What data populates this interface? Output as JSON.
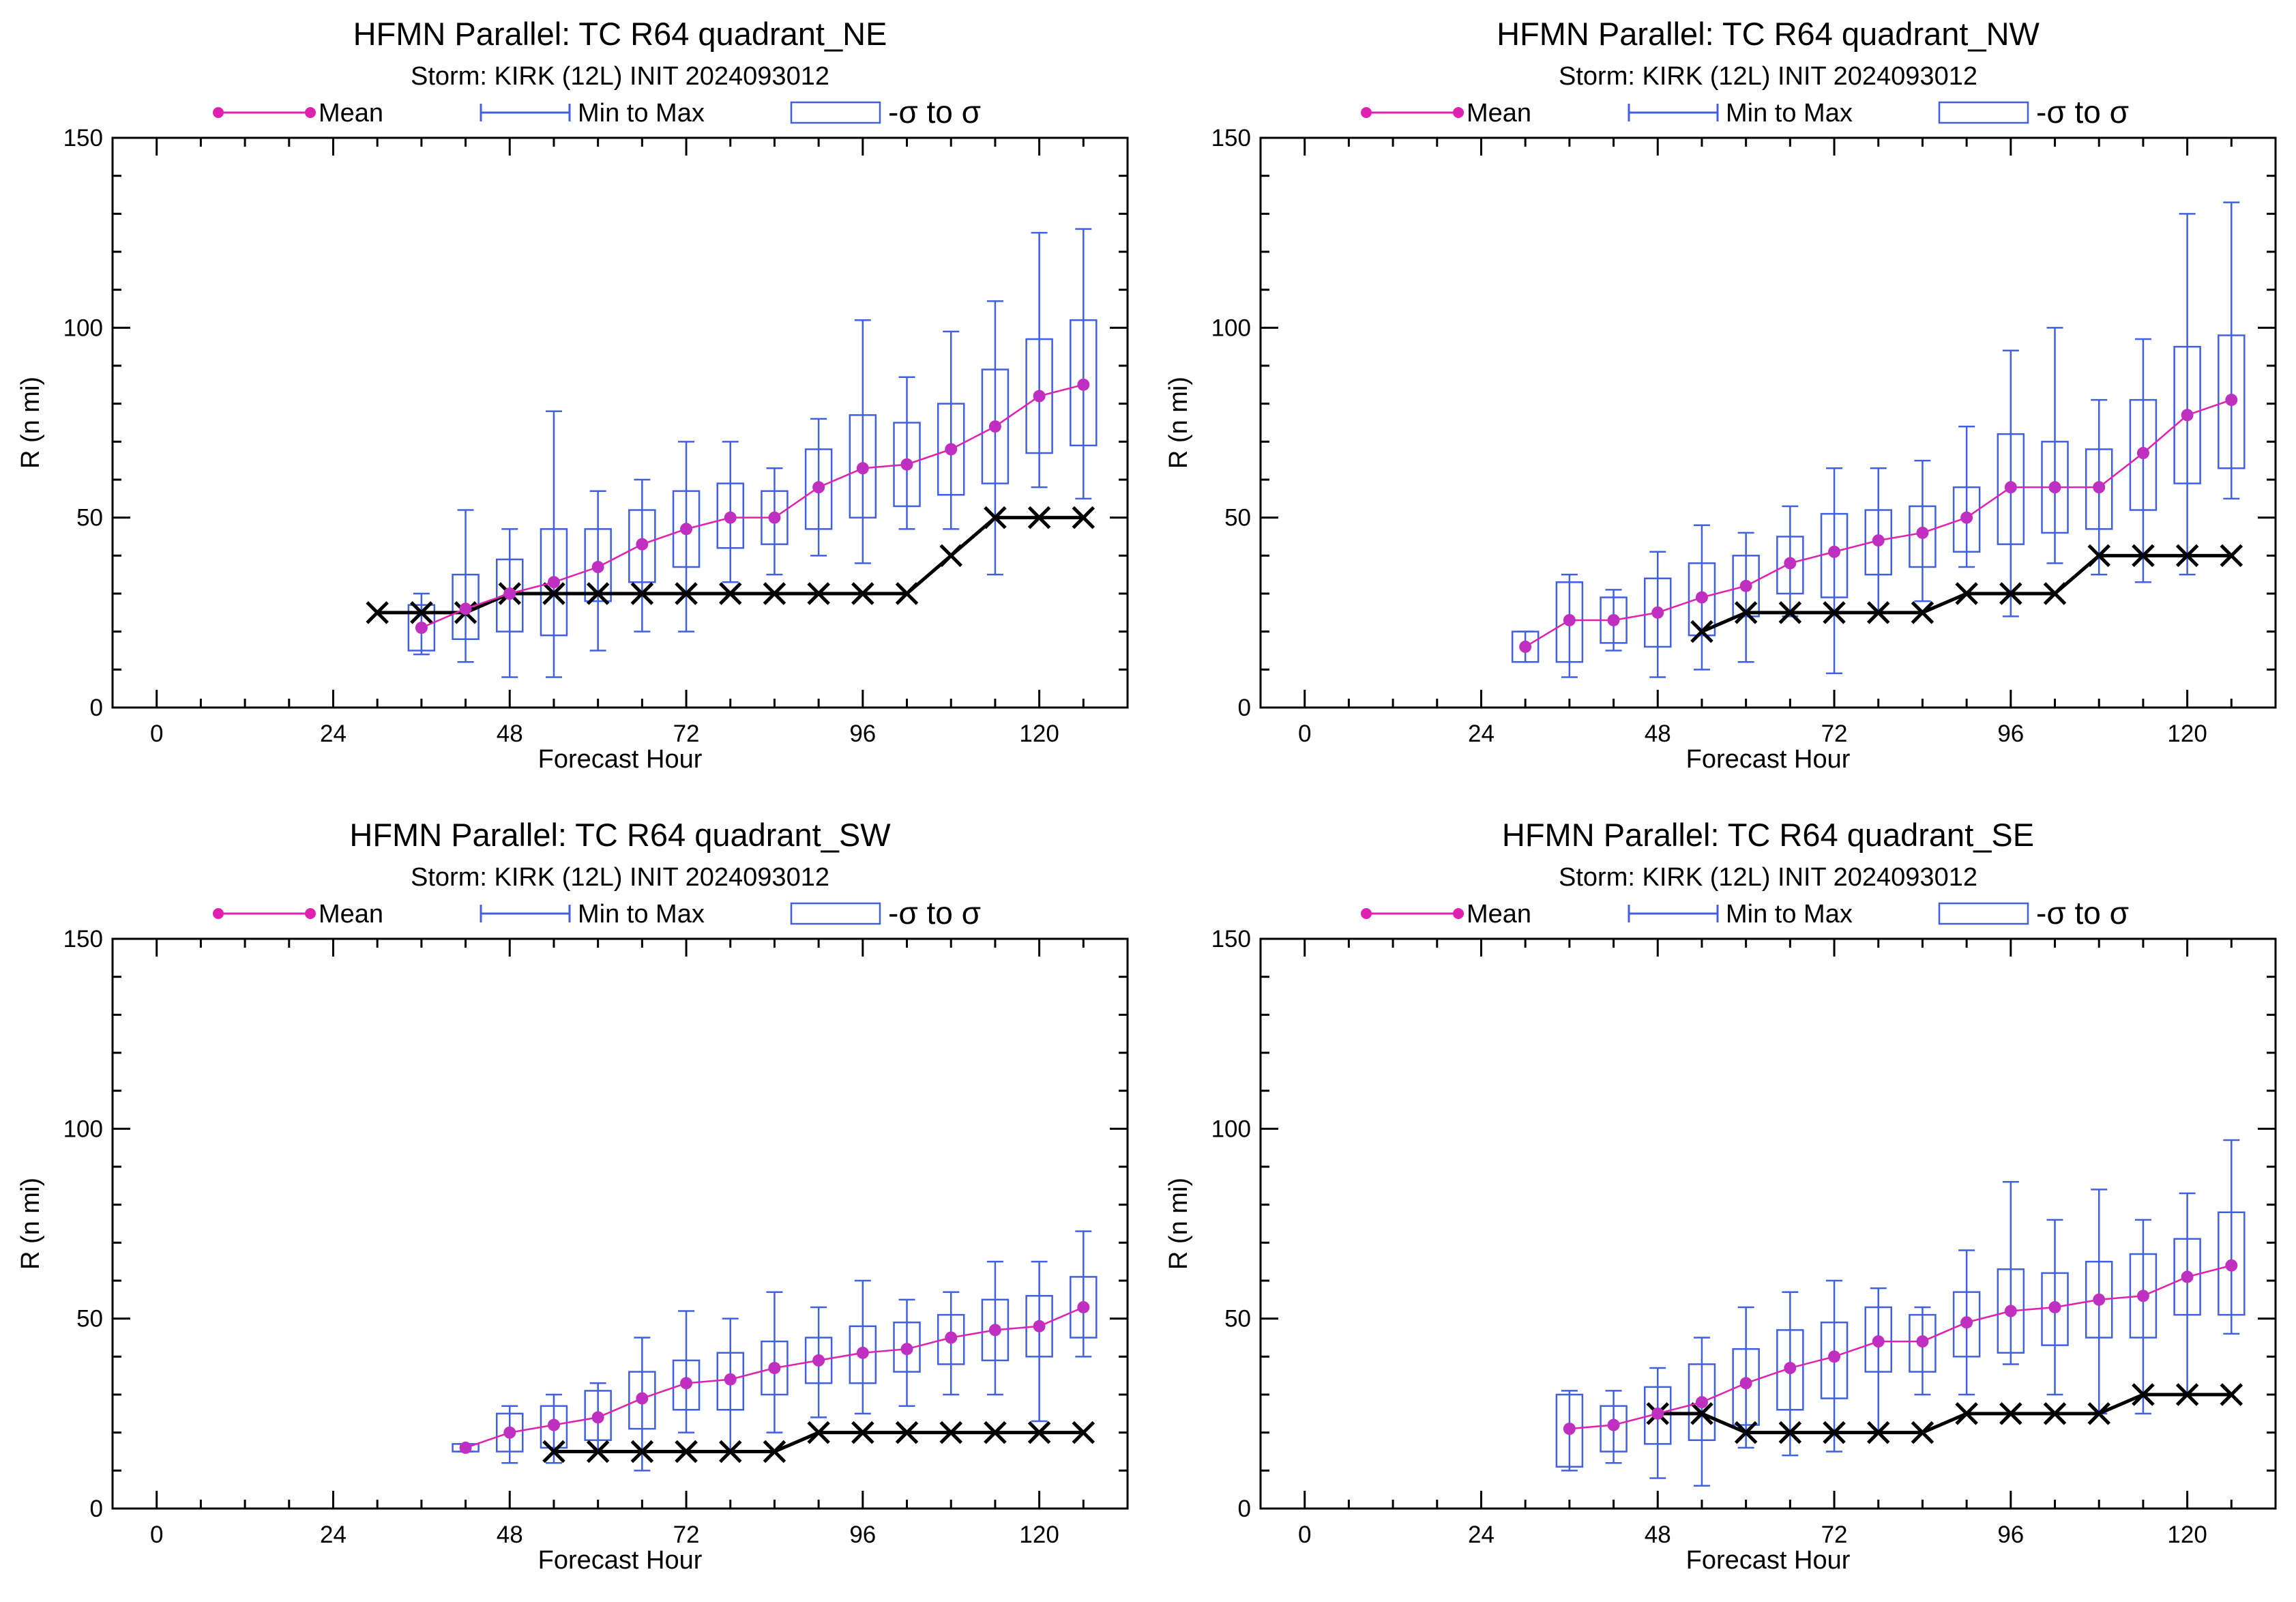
{
  "colors": {
    "mean": "#e020b0",
    "mean_marker": "#c030c0",
    "range": "#4060e0",
    "best_track": "#000000"
  },
  "legend": {
    "mean": "Mean",
    "range": "Min to Max",
    "sigma": "-σ to σ"
  },
  "chart_data": [
    {
      "type": "box",
      "title": "HFMN Parallel: TC  R64 quadrant_NE",
      "subtitle": "Storm: KIRK (12L) INIT 2024093012",
      "xlabel": "Forecast Hour",
      "ylabel": "R (n mi)",
      "xlim": [
        -6,
        132
      ],
      "ylim": [
        0,
        150
      ],
      "xticks": [
        0,
        24,
        48,
        72,
        96,
        120
      ],
      "yticks": [
        0,
        50,
        100,
        150
      ],
      "ensemble": [
        {
          "x": 36,
          "mean": 21,
          "min": 14,
          "max": 30,
          "lo": 15,
          "hi": 27
        },
        {
          "x": 42,
          "mean": 26,
          "min": 12,
          "max": 52,
          "lo": 18,
          "hi": 35
        },
        {
          "x": 48,
          "mean": 30,
          "min": 8,
          "max": 47,
          "lo": 20,
          "hi": 39
        },
        {
          "x": 54,
          "mean": 33,
          "min": 8,
          "max": 78,
          "lo": 19,
          "hi": 47
        },
        {
          "x": 60,
          "mean": 37,
          "min": 15,
          "max": 57,
          "lo": 28,
          "hi": 47
        },
        {
          "x": 66,
          "mean": 43,
          "min": 20,
          "max": 60,
          "lo": 33,
          "hi": 52
        },
        {
          "x": 72,
          "mean": 47,
          "min": 20,
          "max": 70,
          "lo": 37,
          "hi": 57
        },
        {
          "x": 78,
          "mean": 50,
          "min": 33,
          "max": 70,
          "lo": 42,
          "hi": 59
        },
        {
          "x": 84,
          "mean": 50,
          "min": 35,
          "max": 63,
          "lo": 43,
          "hi": 57
        },
        {
          "x": 90,
          "mean": 58,
          "min": 40,
          "max": 76,
          "lo": 47,
          "hi": 68
        },
        {
          "x": 96,
          "mean": 63,
          "min": 38,
          "max": 102,
          "lo": 50,
          "hi": 77
        },
        {
          "x": 102,
          "mean": 64,
          "min": 47,
          "max": 87,
          "lo": 53,
          "hi": 75
        },
        {
          "x": 108,
          "mean": 68,
          "min": 47,
          "max": 99,
          "lo": 56,
          "hi": 80
        },
        {
          "x": 114,
          "mean": 74,
          "min": 35,
          "max": 107,
          "lo": 59,
          "hi": 89
        },
        {
          "x": 120,
          "mean": 82,
          "min": 58,
          "max": 125,
          "lo": 67,
          "hi": 97
        },
        {
          "x": 126,
          "mean": 85,
          "min": 55,
          "max": 126,
          "lo": 69,
          "hi": 102
        }
      ],
      "best_track": {
        "x": [
          30,
          36,
          42,
          48,
          54,
          60,
          66,
          72,
          78,
          84,
          90,
          96,
          102,
          108,
          114,
          120,
          126
        ],
        "y": [
          25,
          25,
          25,
          30,
          30,
          30,
          30,
          30,
          30,
          30,
          30,
          30,
          30,
          40,
          50,
          50,
          50
        ]
      }
    },
    {
      "type": "box",
      "title": "HFMN Parallel: TC  R64 quadrant_NW",
      "subtitle": "Storm: KIRK (12L) INIT 2024093012",
      "xlabel": "Forecast Hour",
      "ylabel": "R (n mi)",
      "xlim": [
        -6,
        132
      ],
      "ylim": [
        0,
        150
      ],
      "xticks": [
        0,
        24,
        48,
        72,
        96,
        120
      ],
      "yticks": [
        0,
        50,
        100,
        150
      ],
      "ensemble": [
        {
          "x": 30,
          "mean": 16,
          "min": 12,
          "max": 20,
          "lo": 12,
          "hi": 20
        },
        {
          "x": 36,
          "mean": 23,
          "min": 8,
          "max": 35,
          "lo": 12,
          "hi": 33
        },
        {
          "x": 42,
          "mean": 23,
          "min": 15,
          "max": 31,
          "lo": 17,
          "hi": 29
        },
        {
          "x": 48,
          "mean": 25,
          "min": 8,
          "max": 41,
          "lo": 16,
          "hi": 34
        },
        {
          "x": 54,
          "mean": 29,
          "min": 10,
          "max": 48,
          "lo": 19,
          "hi": 38
        },
        {
          "x": 60,
          "mean": 32,
          "min": 12,
          "max": 46,
          "lo": 24,
          "hi": 40
        },
        {
          "x": 66,
          "mean": 38,
          "min": 24,
          "max": 53,
          "lo": 30,
          "hi": 45
        },
        {
          "x": 72,
          "mean": 41,
          "min": 9,
          "max": 63,
          "lo": 29,
          "hi": 51
        },
        {
          "x": 78,
          "mean": 44,
          "min": 25,
          "max": 63,
          "lo": 35,
          "hi": 52
        },
        {
          "x": 84,
          "mean": 46,
          "min": 28,
          "max": 65,
          "lo": 37,
          "hi": 53
        },
        {
          "x": 90,
          "mean": 50,
          "min": 37,
          "max": 74,
          "lo": 41,
          "hi": 58
        },
        {
          "x": 96,
          "mean": 58,
          "min": 24,
          "max": 94,
          "lo": 43,
          "hi": 72
        },
        {
          "x": 102,
          "mean": 58,
          "min": 38,
          "max": 100,
          "lo": 46,
          "hi": 70
        },
        {
          "x": 108,
          "mean": 58,
          "min": 35,
          "max": 81,
          "lo": 47,
          "hi": 68
        },
        {
          "x": 114,
          "mean": 67,
          "min": 33,
          "max": 97,
          "lo": 52,
          "hi": 81
        },
        {
          "x": 120,
          "mean": 77,
          "min": 35,
          "max": 130,
          "lo": 59,
          "hi": 95
        },
        {
          "x": 126,
          "mean": 81,
          "min": 55,
          "max": 133,
          "lo": 63,
          "hi": 98
        }
      ],
      "best_track": {
        "x": [
          54,
          60,
          66,
          72,
          78,
          84,
          90,
          96,
          102,
          108,
          114,
          120,
          126
        ],
        "y": [
          20,
          25,
          25,
          25,
          25,
          25,
          30,
          30,
          30,
          40,
          40,
          40,
          40
        ]
      }
    },
    {
      "type": "box",
      "title": "HFMN Parallel: TC  R64 quadrant_SW",
      "subtitle": "Storm: KIRK (12L) INIT 2024093012",
      "xlabel": "Forecast Hour",
      "ylabel": "R (n mi)",
      "xlim": [
        -6,
        132
      ],
      "ylim": [
        0,
        150
      ],
      "xticks": [
        0,
        24,
        48,
        72,
        96,
        120
      ],
      "yticks": [
        0,
        50,
        100,
        150
      ],
      "ensemble": [
        {
          "x": 42,
          "mean": 16,
          "min": 15,
          "max": 17,
          "lo": 15,
          "hi": 17
        },
        {
          "x": 48,
          "mean": 20,
          "min": 12,
          "max": 27,
          "lo": 15,
          "hi": 25
        },
        {
          "x": 54,
          "mean": 22,
          "min": 12,
          "max": 30,
          "lo": 16,
          "hi": 27
        },
        {
          "x": 60,
          "mean": 24,
          "min": 15,
          "max": 33,
          "lo": 18,
          "hi": 31
        },
        {
          "x": 66,
          "mean": 29,
          "min": 10,
          "max": 45,
          "lo": 21,
          "hi": 36
        },
        {
          "x": 72,
          "mean": 33,
          "min": 20,
          "max": 52,
          "lo": 26,
          "hi": 39
        },
        {
          "x": 78,
          "mean": 34,
          "min": 15,
          "max": 50,
          "lo": 26,
          "hi": 41
        },
        {
          "x": 84,
          "mean": 37,
          "min": 20,
          "max": 57,
          "lo": 30,
          "hi": 44
        },
        {
          "x": 90,
          "mean": 39,
          "min": 24,
          "max": 53,
          "lo": 33,
          "hi": 45
        },
        {
          "x": 96,
          "mean": 41,
          "min": 25,
          "max": 60,
          "lo": 33,
          "hi": 48
        },
        {
          "x": 102,
          "mean": 42,
          "min": 27,
          "max": 55,
          "lo": 36,
          "hi": 49
        },
        {
          "x": 108,
          "mean": 45,
          "min": 30,
          "max": 57,
          "lo": 38,
          "hi": 51
        },
        {
          "x": 114,
          "mean": 47,
          "min": 30,
          "max": 65,
          "lo": 39,
          "hi": 55
        },
        {
          "x": 120,
          "mean": 48,
          "min": 23,
          "max": 65,
          "lo": 40,
          "hi": 56
        },
        {
          "x": 126,
          "mean": 53,
          "min": 40,
          "max": 73,
          "lo": 45,
          "hi": 61
        }
      ],
      "best_track": {
        "x": [
          54,
          60,
          66,
          72,
          78,
          84,
          90,
          96,
          102,
          108,
          114,
          120,
          126
        ],
        "y": [
          15,
          15,
          15,
          15,
          15,
          15,
          20,
          20,
          20,
          20,
          20,
          20,
          20
        ]
      }
    },
    {
      "type": "box",
      "title": "HFMN Parallel: TC  R64 quadrant_SE",
      "subtitle": "Storm: KIRK (12L) INIT 2024093012",
      "xlabel": "Forecast Hour",
      "ylabel": "R (n mi)",
      "xlim": [
        -6,
        132
      ],
      "ylim": [
        0,
        150
      ],
      "xticks": [
        0,
        24,
        48,
        72,
        96,
        120
      ],
      "yticks": [
        0,
        50,
        100,
        150
      ],
      "ensemble": [
        {
          "x": 36,
          "mean": 21,
          "min": 10,
          "max": 31,
          "lo": 11,
          "hi": 30
        },
        {
          "x": 42,
          "mean": 22,
          "min": 12,
          "max": 31,
          "lo": 15,
          "hi": 27
        },
        {
          "x": 48,
          "mean": 25,
          "min": 8,
          "max": 37,
          "lo": 17,
          "hi": 32
        },
        {
          "x": 54,
          "mean": 28,
          "min": 6,
          "max": 45,
          "lo": 18,
          "hi": 38
        },
        {
          "x": 60,
          "mean": 33,
          "min": 16,
          "max": 53,
          "lo": 22,
          "hi": 42
        },
        {
          "x": 66,
          "mean": 37,
          "min": 14,
          "max": 57,
          "lo": 26,
          "hi": 47
        },
        {
          "x": 72,
          "mean": 40,
          "min": 15,
          "max": 60,
          "lo": 29,
          "hi": 49
        },
        {
          "x": 78,
          "mean": 44,
          "min": 20,
          "max": 58,
          "lo": 36,
          "hi": 53
        },
        {
          "x": 84,
          "mean": 44,
          "min": 30,
          "max": 53,
          "lo": 36,
          "hi": 51
        },
        {
          "x": 90,
          "mean": 49,
          "min": 30,
          "max": 68,
          "lo": 40,
          "hi": 57
        },
        {
          "x": 96,
          "mean": 52,
          "min": 38,
          "max": 86,
          "lo": 41,
          "hi": 63
        },
        {
          "x": 102,
          "mean": 53,
          "min": 30,
          "max": 76,
          "lo": 43,
          "hi": 62
        },
        {
          "x": 108,
          "mean": 55,
          "min": 25,
          "max": 84,
          "lo": 45,
          "hi": 65
        },
        {
          "x": 114,
          "mean": 56,
          "min": 25,
          "max": 76,
          "lo": 45,
          "hi": 67
        },
        {
          "x": 120,
          "mean": 61,
          "min": 30,
          "max": 83,
          "lo": 51,
          "hi": 71
        },
        {
          "x": 126,
          "mean": 64,
          "min": 46,
          "max": 97,
          "lo": 51,
          "hi": 78
        }
      ],
      "best_track": {
        "x": [
          48,
          54,
          60,
          66,
          72,
          78,
          84,
          90,
          96,
          102,
          108,
          114,
          120,
          126
        ],
        "y": [
          25,
          25,
          20,
          20,
          20,
          20,
          20,
          25,
          25,
          25,
          25,
          30,
          30,
          30
        ]
      }
    }
  ]
}
